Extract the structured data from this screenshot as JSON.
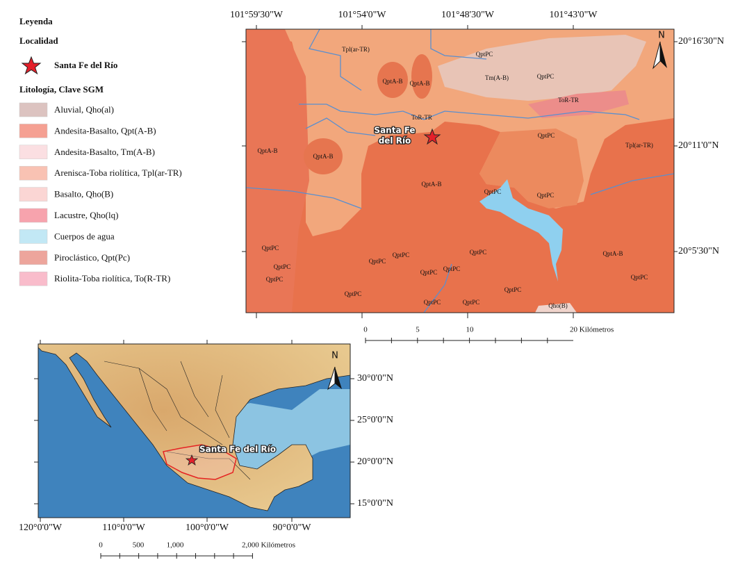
{
  "legend": {
    "title": "Leyenda",
    "locality_header": "Localidad",
    "locality": "Santa Fe del Río",
    "lithology_header": "Litología, Clave SGM",
    "items": [
      {
        "label": "Aluvial, Qho(al)",
        "color": "#dcc3c0"
      },
      {
        "label": "Andesita-Basalto, Qpt(A-B)",
        "color": "#f5a092"
      },
      {
        "label": "Andesita-Basalto, Tm(A-B)",
        "color": "#fbdfe2"
      },
      {
        "label": "Arenisca-Toba riolítica, Tpl(ar-TR)",
        "color": "#f9c2b3"
      },
      {
        "label": "Basalto, Qho(B)",
        "color": "#fbd6d4"
      },
      {
        "label": "Lacustre, Qho(lq)",
        "color": "#f7a3ad"
      },
      {
        "label": "Cuerpos de agua",
        "color": "#c2e8f5"
      },
      {
        "label": "Piroclástico, Qpt(Pc)",
        "color": "#eda59c"
      },
      {
        "label": "Riolita-Toba riolítica, To(R-TR)",
        "color": "#f9bccb"
      }
    ]
  },
  "main_map": {
    "north": "N",
    "lon_labels": [
      "101°59'30\"W",
      "101°54'0\"W",
      "101°48'30\"W",
      "101°43'0\"W"
    ],
    "lat_labels": [
      "20°16'30\"N",
      "20°11'0\"N",
      "20°5'30\"N"
    ],
    "locality_label": [
      "Santa Fe",
      "del Río"
    ],
    "unit_labels": [
      "Tpl(ar-TR)",
      "QptPC",
      "QptA-B",
      "QptA-B",
      "Tm(A-B)",
      "QptPC",
      "ToR-TR",
      "ToR-TR",
      "QptPC",
      "QptA-B",
      "QptA-B",
      "Tpl(ar-TR)",
      "QptA-B",
      "QptPC",
      "QptPC",
      "QptPC",
      "QptPC",
      "QptPC",
      "QptPC",
      "QptPC",
      "QptPC",
      "QptPC",
      "QptPC",
      "QptA-B",
      "QptPC",
      "QptPC",
      "QptPC",
      "QptPC",
      "QptPC",
      "Qho(B)"
    ],
    "scale_labels": [
      "0",
      "5",
      "10",
      "20 Kilómetros"
    ]
  },
  "inset_map": {
    "north": "N",
    "lon_labels": [
      "120°0'0\"W",
      "110°0'0\"W",
      "100°0'0\"W",
      "90°0'0\"W"
    ],
    "lat_labels": [
      "30°0'0\"N",
      "25°0'0\"N",
      "20°0'0\"N",
      "15°0'0\"N"
    ],
    "locality_label": "Santa Fe del Río",
    "scale_labels": [
      "0",
      "500",
      "1,000",
      "2,000 Kilómetros"
    ]
  }
}
